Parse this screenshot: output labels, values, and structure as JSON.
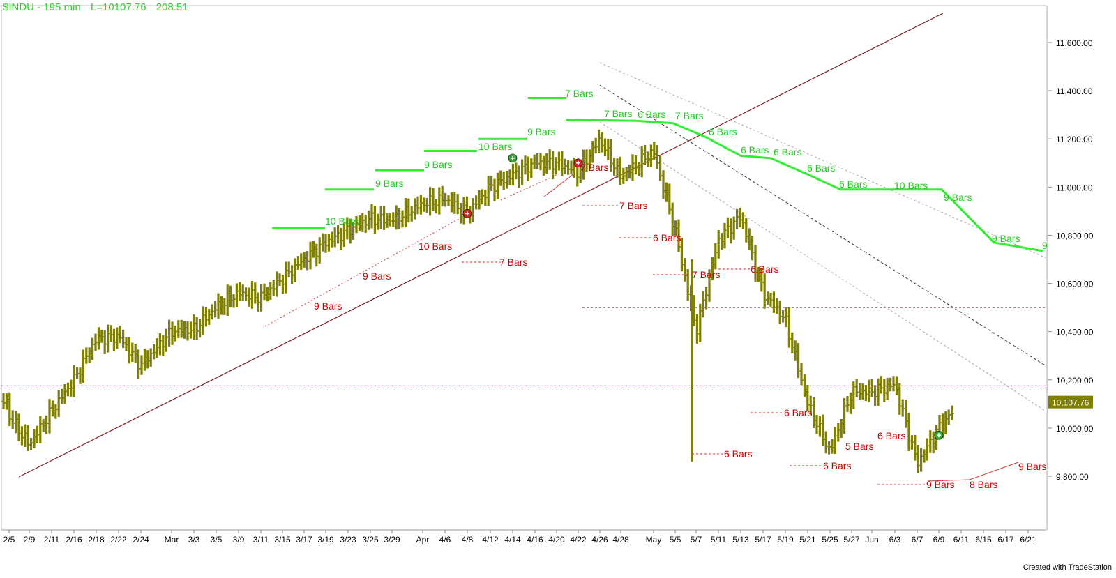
{
  "header": {
    "symbol_interval": "$INDU - 195 min",
    "last_label": "L=10107.76",
    "change": "208.51",
    "color": "#33cc33"
  },
  "footer": {
    "credit": "Created with TradeStation"
  },
  "colors": {
    "bars": "#7f7f00",
    "cycle_high_line": "#33ee33",
    "cycle_label_high": "#22cc22",
    "cycle_label_low": "#cc0000",
    "trendline": "#7f1f1f",
    "dotted_low": "#cc3333",
    "horizontal_dashed": "#99226a",
    "channel": "#555555",
    "last_price_bg": "#7f7f00"
  },
  "chart_data": {
    "type": "ohlc-bar",
    "symbol": "$INDU",
    "interval": "195 min",
    "last_price": 10107.76,
    "last_price_label": "10,107.76",
    "y_axis": {
      "min": 9700,
      "max": 11780,
      "ticks": [
        {
          "value": 9800,
          "label": "9,800.00"
        },
        {
          "value": 10000,
          "label": "10,000.00"
        },
        {
          "value": 10200,
          "label": "10,200.00"
        },
        {
          "value": 10400,
          "label": "10,400.00"
        },
        {
          "value": 10600,
          "label": "10,600.00"
        },
        {
          "value": 10800,
          "label": "10,800.00"
        },
        {
          "value": 11000,
          "label": "11,000.00"
        },
        {
          "value": 11200,
          "label": "11,200.00"
        },
        {
          "value": 11400,
          "label": "11,400.00"
        },
        {
          "value": 11600,
          "label": "11,600.00"
        }
      ]
    },
    "x_axis": {
      "labels": [
        "2/5",
        "2/9",
        "2/11",
        "2/16",
        "2/18",
        "2/22",
        "2/24",
        "Mar",
        "3/3",
        "3/5",
        "3/9",
        "3/11",
        "3/15",
        "3/17",
        "3/19",
        "3/23",
        "3/25",
        "3/29",
        "Apr",
        "4/6",
        "4/8",
        "4/12",
        "4/14",
        "4/16",
        "4/20",
        "4/22",
        "4/26",
        "4/28",
        "May",
        "5/5",
        "5/7",
        "5/11",
        "5/13",
        "5/17",
        "5/19",
        "5/21",
        "5/25",
        "5/27",
        "Jun",
        "6/3",
        "6/7",
        "6/9",
        "6/11",
        "6/15",
        "6/17",
        "6/21"
      ]
    },
    "price_path": [
      [
        "2/5",
        10050
      ],
      [
        "2/9",
        9930
      ],
      [
        "2/11",
        10070
      ],
      [
        "2/16",
        10200
      ],
      [
        "2/18",
        10370
      ],
      [
        "2/22",
        10380
      ],
      [
        "2/24",
        10260
      ],
      [
        "Mar",
        10400
      ],
      [
        "3/3",
        10410
      ],
      [
        "3/5",
        10500
      ],
      [
        "3/9",
        10560
      ],
      [
        "3/11",
        10540
      ],
      [
        "3/15",
        10620
      ],
      [
        "3/17",
        10700
      ],
      [
        "3/19",
        10770
      ],
      [
        "3/23",
        10820
      ],
      [
        "3/25",
        10870
      ],
      [
        "3/29",
        10860
      ],
      [
        "Apr",
        10930
      ],
      [
        "4/6",
        10950
      ],
      [
        "4/8",
        10890
      ],
      [
        "4/12",
        11000
      ],
      [
        "4/14",
        11050
      ],
      [
        "4/16",
        11100
      ],
      [
        "4/20",
        11100
      ],
      [
        "4/22",
        11060
      ],
      [
        "4/26",
        11200
      ],
      [
        "4/28",
        11040
      ],
      [
        "May",
        11150
      ],
      [
        "5/5",
        10820
      ],
      [
        "5/7",
        10400
      ],
      [
        "5/11",
        10780
      ],
      [
        "5/13",
        10880
      ],
      [
        "5/17",
        10560
      ],
      [
        "5/19",
        10450
      ],
      [
        "5/21",
        10100
      ],
      [
        "5/25",
        9900
      ],
      [
        "5/27",
        10150
      ],
      [
        "Jun",
        10150
      ],
      [
        "6/3",
        10180
      ],
      [
        "6/7",
        9850
      ],
      [
        "6/9",
        10000
      ],
      [
        "6/11",
        10110
      ]
    ],
    "cycle_highs": [
      {
        "label": "10 Bars",
        "value": 10830
      },
      {
        "label": "9 Bars",
        "value": 10990
      },
      {
        "label": "9 Bars",
        "value": 11070
      },
      {
        "label": "10 Bars",
        "value": 11150
      },
      {
        "label": "9 Bars",
        "value": 11200
      },
      {
        "label": "7 Bars",
        "value": 11370
      },
      {
        "label": "7 Bars",
        "value": 11280
      },
      {
        "label": "6 Bars",
        "value": 11270
      },
      {
        "label": "7 Bars",
        "value": 11270
      },
      {
        "label": "6 Bars",
        "value": 11210
      },
      {
        "label": "6 Bars",
        "value": 11130
      },
      {
        "label": "6 Bars",
        "value": 11120
      },
      {
        "label": "6 Bars",
        "value": 11050
      },
      {
        "label": "6 Bars",
        "value": 10990
      },
      {
        "label": "10 Bars",
        "value": 10990
      },
      {
        "label": "9 Bars",
        "value": 10990
      },
      {
        "label": "9 Bars",
        "value": 10770
      },
      {
        "label": "9",
        "value": 10735
      }
    ],
    "cycle_lows": [
      {
        "label": "9 Bars",
        "value": 10420
      },
      {
        "label": "9 Bars",
        "value": 10590
      },
      {
        "label": "10 Bars",
        "value": 10700
      },
      {
        "label": "7 Bars",
        "value": 10660
      },
      {
        "label": "7 Bars",
        "value": 11080
      },
      {
        "label": "7 Bars",
        "value": 10940
      },
      {
        "label": "6 Bars",
        "value": 10770
      },
      {
        "label": "7 Bars",
        "value": 10640
      },
      {
        "label": "6 Bars",
        "value": 10660
      },
      {
        "label": "6 Bars",
        "value": 9860
      },
      {
        "label": "6 Bars",
        "value": 10090
      },
      {
        "label": "6 Bars",
        "value": 9820
      },
      {
        "label": "5 Bars",
        "value": 9935
      },
      {
        "label": "6 Bars",
        "value": 9945
      },
      {
        "label": "9 Bars",
        "value": 9760
      },
      {
        "label": "8 Bars",
        "value": 9780
      },
      {
        "label": "9 Bars",
        "value": 9855
      }
    ],
    "horizontal_levels": [
      10500,
      10175
    ],
    "signals": [
      {
        "kind": "buy",
        "date": "4/14",
        "value": 11120
      },
      {
        "kind": "sell",
        "date": "4/8",
        "value": 10890
      },
      {
        "kind": "sell",
        "date": "4/22",
        "value": 11100
      },
      {
        "kind": "buy",
        "date": "6/9",
        "value": 9970
      }
    ]
  }
}
